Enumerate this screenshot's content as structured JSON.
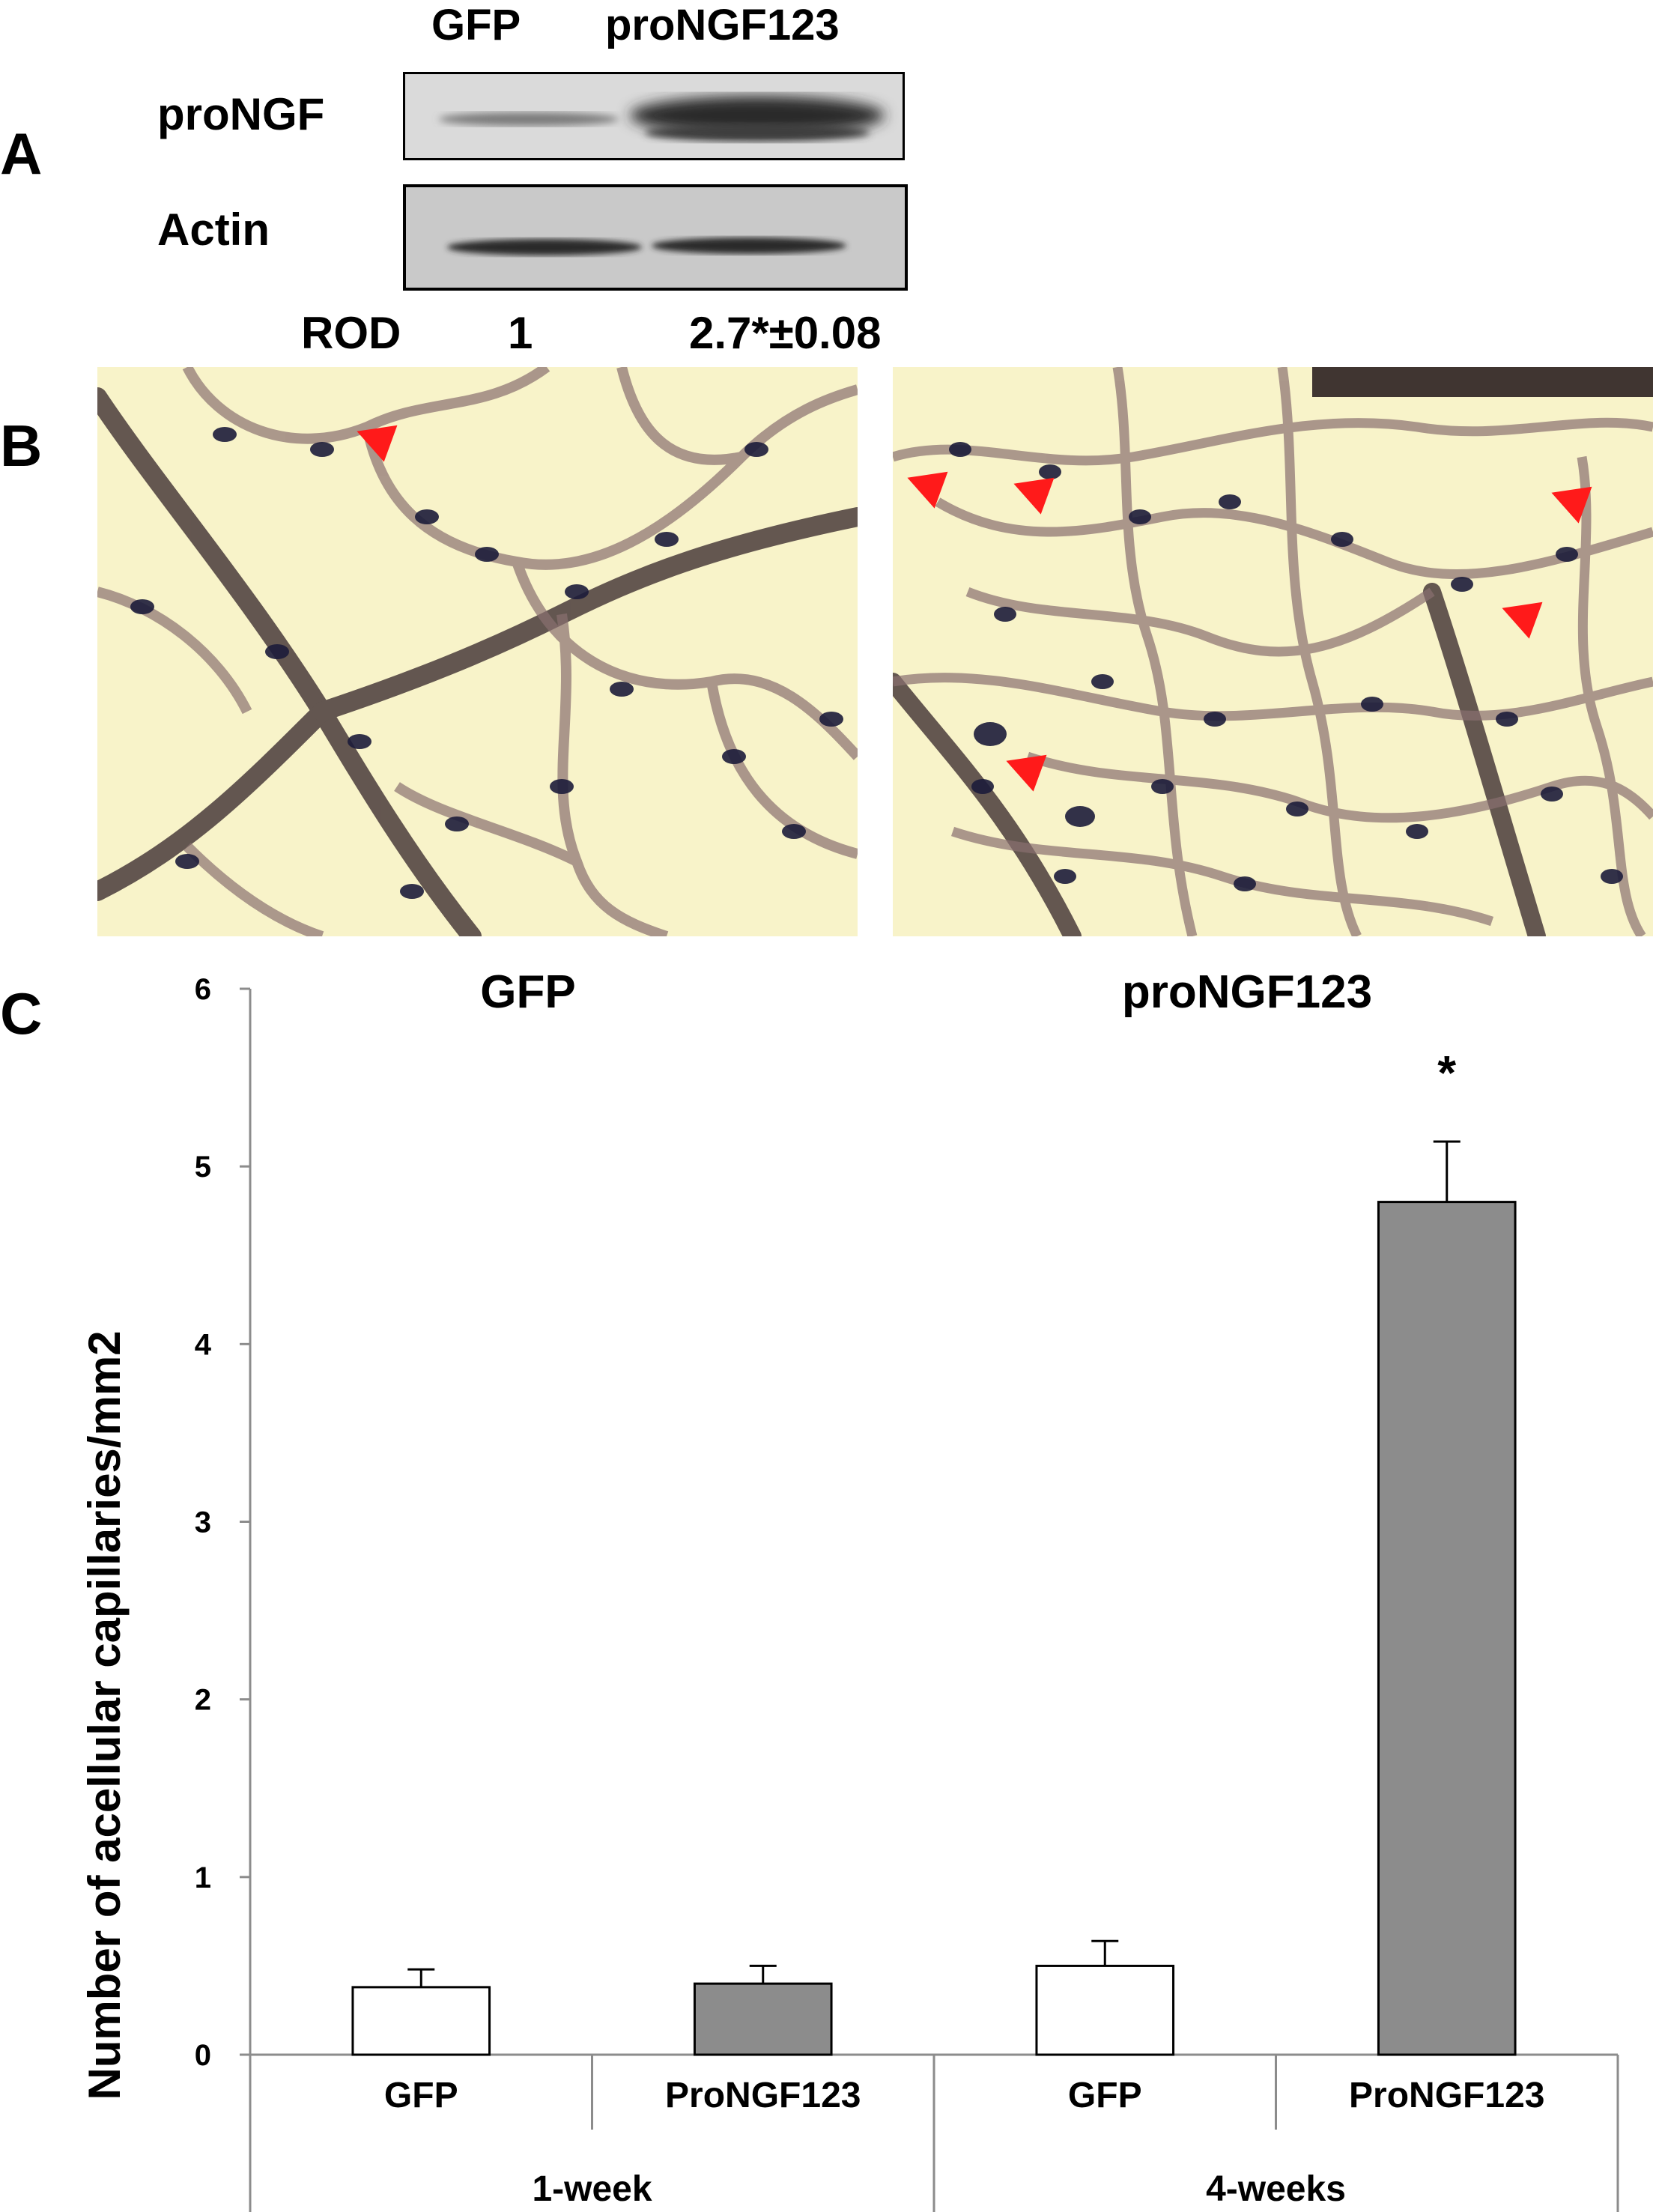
{
  "panel_a": {
    "letter": "A",
    "lanes": [
      "GFP",
      "proNGF123"
    ],
    "rows": [
      "proNGF",
      "Actin"
    ],
    "rod_label": "ROD",
    "rod_values": [
      "1",
      "2.7*±0.08"
    ]
  },
  "panel_b": {
    "letter": "B",
    "images": [
      "GFP retinal vasculature",
      "proNGF123 retinal vasculature"
    ]
  },
  "panel_c": {
    "letter": "C",
    "group_titles": [
      "GFP",
      "proNGF123"
    ],
    "significance": "*"
  },
  "chart_data": {
    "type": "bar",
    "ylabel": "Number of acellular capillaries/mm2",
    "ylim": [
      0,
      6
    ],
    "yticks": [
      "0",
      "1",
      "2",
      "3",
      "4",
      "5",
      "6"
    ],
    "categories": [
      "GFP",
      "ProNGF123",
      "GFP",
      "ProNGF123"
    ],
    "groups": [
      "1-week",
      "4-weeks"
    ],
    "values": [
      0.38,
      0.4,
      0.5,
      4.8
    ],
    "errors": [
      0.1,
      0.1,
      0.14,
      0.34
    ],
    "fills": [
      "#ffffff",
      "#8c8c8c",
      "#ffffff",
      "#8c8c8c"
    ],
    "grid": false
  }
}
